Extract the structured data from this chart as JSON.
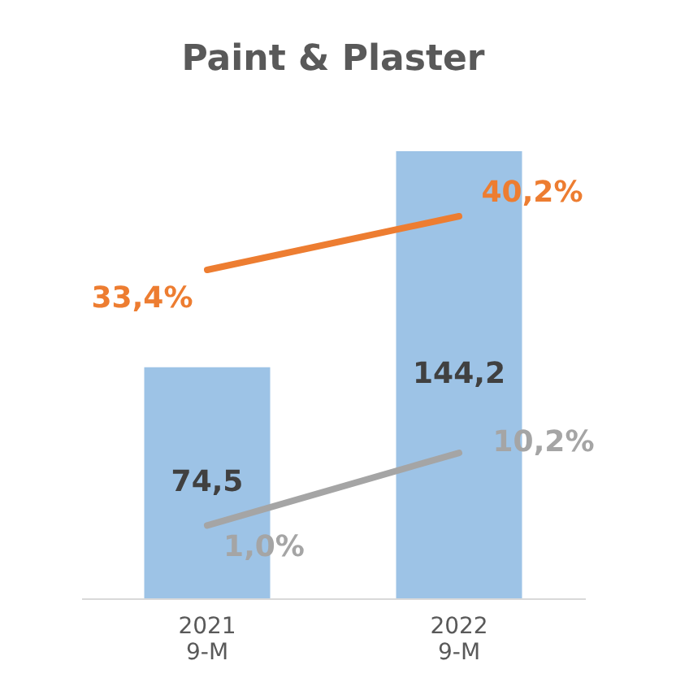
{
  "chart_data": {
    "type": "bar",
    "title": "Paint & Plaster",
    "categories": [
      "2021\n9-M",
      "2022\n9-M"
    ],
    "tick_labels": "x",
    "grid": false,
    "series": [
      {
        "color": "#9dc3e6",
        "values": [
          74.5,
          144.2
        ],
        "value_labels": [
          "74,5",
          "144,2"
        ]
      },
      {
        "type": "line",
        "axis": "y2",
        "color": "#ed7d31",
        "values": [
          33.4,
          40.2
        ],
        "value_labels": [
          "33,4%",
          "40,2%"
        ]
      },
      {
        "type": "line",
        "axis": "y2",
        "color": "#a5a5a5",
        "values": [
          1.0,
          10.2
        ],
        "value_labels": [
          "1,0%",
          "10,2%"
        ]
      }
    ]
  }
}
